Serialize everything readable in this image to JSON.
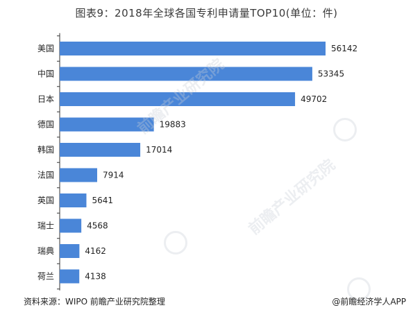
{
  "title": "图表9：2018年全球各国专利申请量TOP10(单位：件)",
  "source": "资料来源：WIPO 前瞻产业研究院整理",
  "credit": "@前瞻经济学人APP",
  "watermark_text": "前瞻产业研究院",
  "colors": {
    "bar": "#4a86d8",
    "axis": "#333333",
    "label": "#222222"
  },
  "chart_data": {
    "type": "bar",
    "orientation": "horizontal",
    "categories": [
      "美国",
      "中国",
      "日本",
      "德国",
      "韩国",
      "法国",
      "英国",
      "瑞士",
      "瑞典",
      "荷兰"
    ],
    "values": [
      56142,
      53345,
      49702,
      19883,
      17014,
      7914,
      5641,
      4568,
      4162,
      4138
    ],
    "title": "图表9：2018年全球各国专利申请量TOP10(单位：件)",
    "xlabel": "",
    "ylabel": "",
    "xlim": [
      0,
      56142
    ],
    "grid": false,
    "legend": "none"
  }
}
